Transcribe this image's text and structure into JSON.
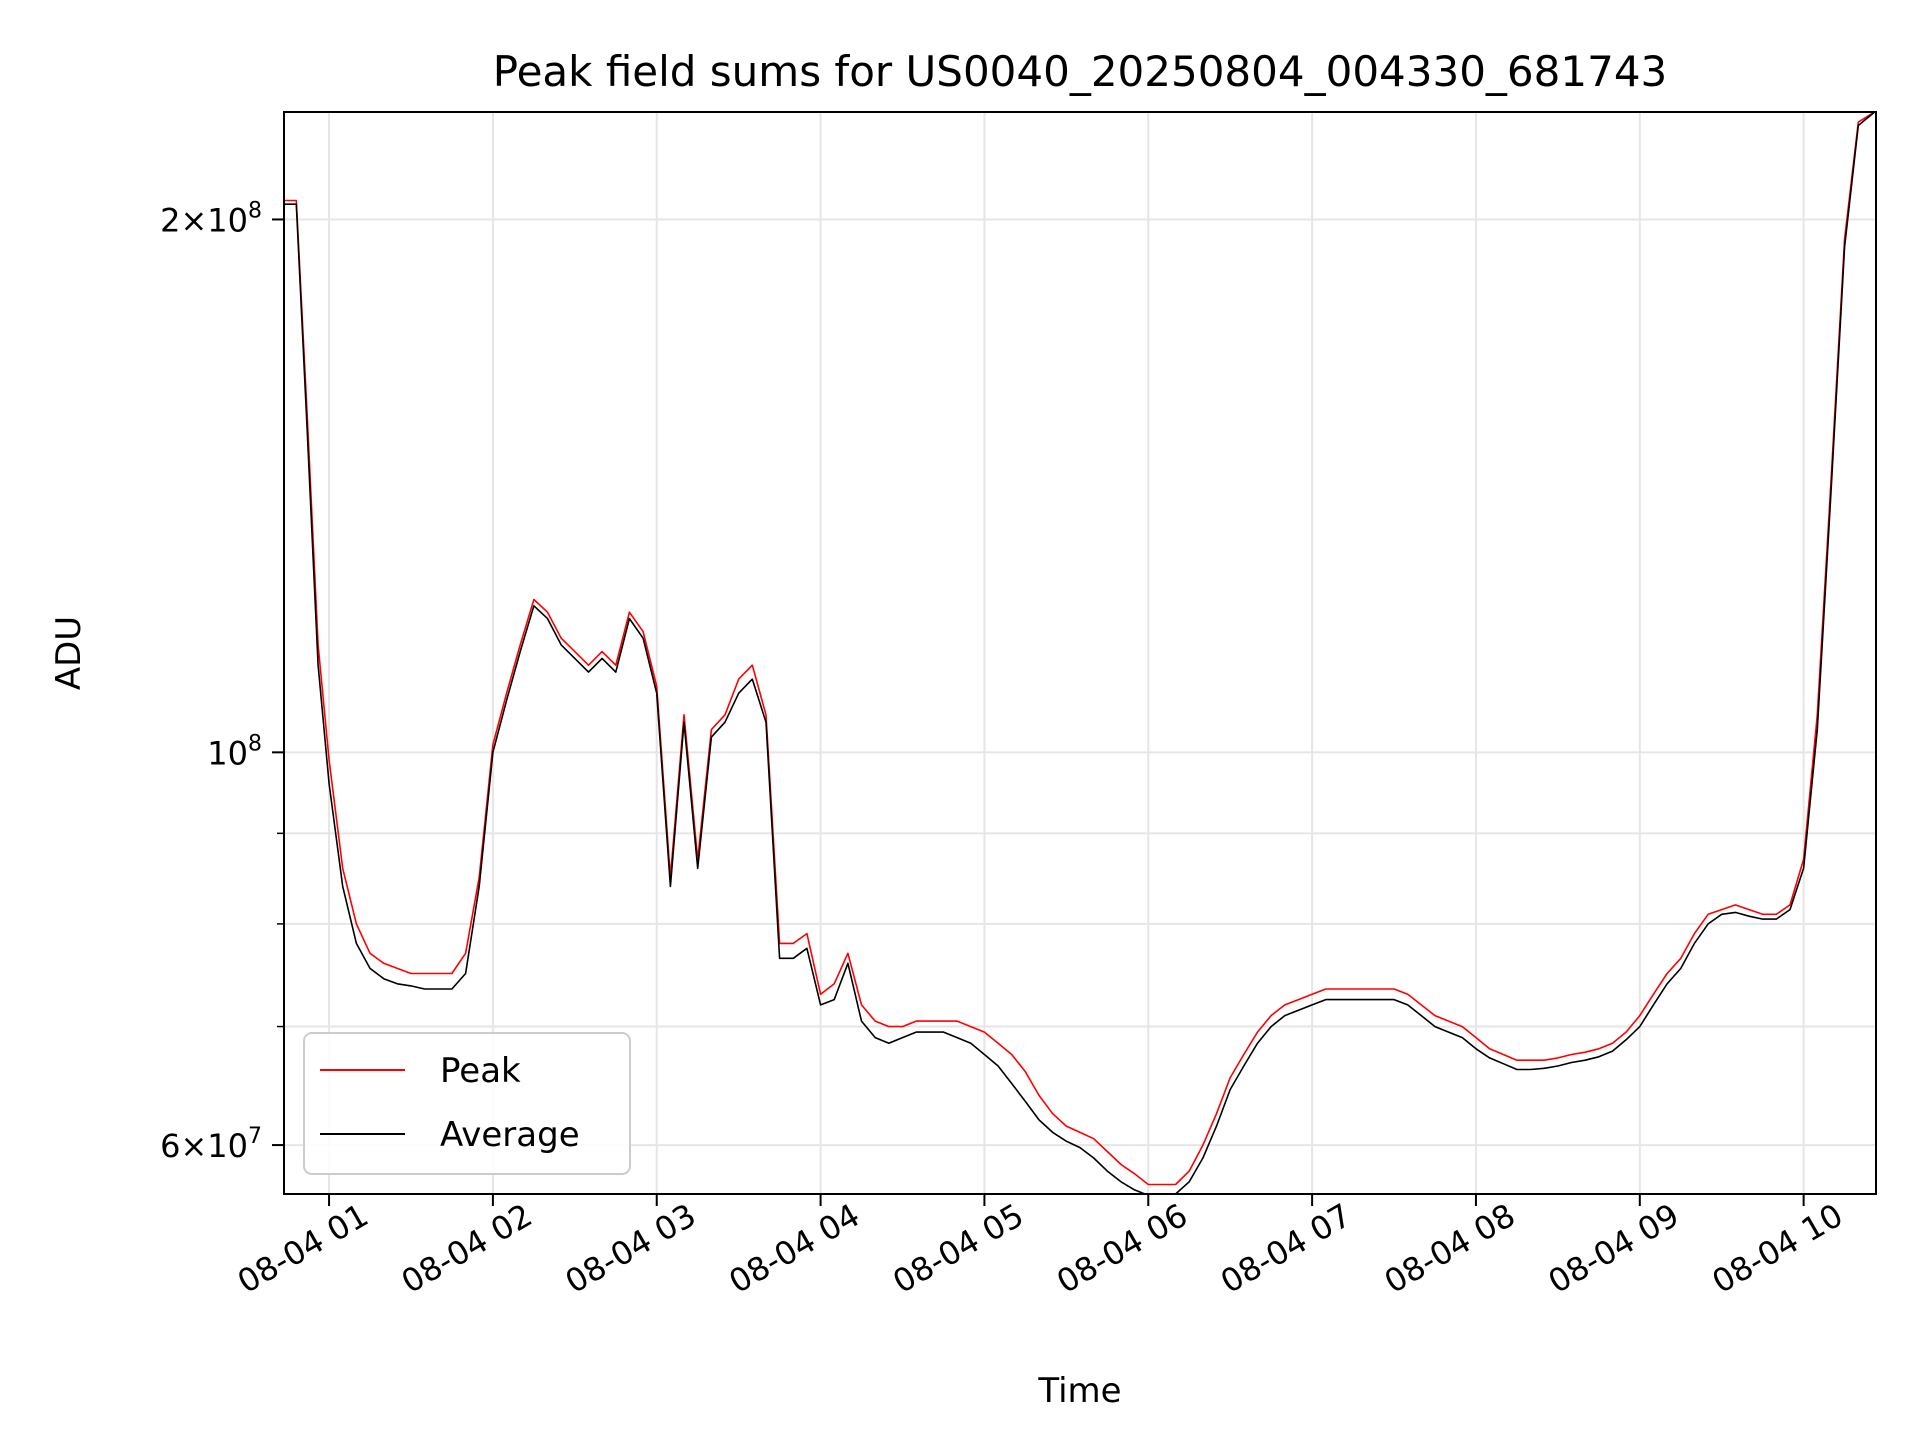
{
  "chart_data": {
    "type": "line",
    "title": "Peak field sums for US0040_20250804_004330_681743",
    "xlabel": "Time",
    "ylabel": "ADU",
    "y_scale": "log",
    "grid": true,
    "legend_position": "lower-left",
    "xlim": [
      "2025-08-04 00:43:30",
      "2025-08-04 10:26:30"
    ],
    "ylim": [
      56300000.0,
      230000000.0
    ],
    "x_ticks": [
      {
        "t": "2025-08-04 01:00",
        "label": "08-04 01"
      },
      {
        "t": "2025-08-04 02:00",
        "label": "08-04 02"
      },
      {
        "t": "2025-08-04 03:00",
        "label": "08-04 03"
      },
      {
        "t": "2025-08-04 04:00",
        "label": "08-04 04"
      },
      {
        "t": "2025-08-04 05:00",
        "label": "08-04 05"
      },
      {
        "t": "2025-08-04 06:00",
        "label": "08-04 06"
      },
      {
        "t": "2025-08-04 07:00",
        "label": "08-04 07"
      },
      {
        "t": "2025-08-04 08:00",
        "label": "08-04 08"
      },
      {
        "t": "2025-08-04 09:00",
        "label": "08-04 09"
      },
      {
        "t": "2025-08-04 10:00",
        "label": "08-04 10"
      }
    ],
    "y_ticks_major": [
      {
        "value": 60000000,
        "base": "6",
        "exp": "7"
      },
      {
        "value": 100000000,
        "base": "",
        "exp": "8"
      },
      {
        "value": 200000000,
        "base": "2",
        "exp": "8"
      }
    ],
    "y_ticks_minor": [
      70000000,
      80000000,
      90000000
    ],
    "series": [
      {
        "name": "Peak",
        "color": "#ff0000",
        "x": [
          "2025-08-04 00:43",
          "2025-08-04 00:48",
          "2025-08-04 00:52",
          "2025-08-04 00:56",
          "2025-08-04 01:00",
          "2025-08-04 01:05",
          "2025-08-04 01:10",
          "2025-08-04 01:15",
          "2025-08-04 01:20",
          "2025-08-04 01:25",
          "2025-08-04 01:30",
          "2025-08-04 01:35",
          "2025-08-04 01:40",
          "2025-08-04 01:45",
          "2025-08-04 01:50",
          "2025-08-04 01:55",
          "2025-08-04 02:00",
          "2025-08-04 02:05",
          "2025-08-04 02:10",
          "2025-08-04 02:15",
          "2025-08-04 02:20",
          "2025-08-04 02:25",
          "2025-08-04 02:30",
          "2025-08-04 02:35",
          "2025-08-04 02:40",
          "2025-08-04 02:45",
          "2025-08-04 02:50",
          "2025-08-04 02:55",
          "2025-08-04 03:00",
          "2025-08-04 03:05",
          "2025-08-04 03:10",
          "2025-08-04 03:15",
          "2025-08-04 03:20",
          "2025-08-04 03:25",
          "2025-08-04 03:30",
          "2025-08-04 03:35",
          "2025-08-04 03:40",
          "2025-08-04 03:45",
          "2025-08-04 03:50",
          "2025-08-04 03:55",
          "2025-08-04 04:00",
          "2025-08-04 04:05",
          "2025-08-04 04:10",
          "2025-08-04 04:15",
          "2025-08-04 04:20",
          "2025-08-04 04:25",
          "2025-08-04 04:30",
          "2025-08-04 04:35",
          "2025-08-04 04:40",
          "2025-08-04 04:45",
          "2025-08-04 04:50",
          "2025-08-04 04:55",
          "2025-08-04 05:00",
          "2025-08-04 05:05",
          "2025-08-04 05:10",
          "2025-08-04 05:15",
          "2025-08-04 05:20",
          "2025-08-04 05:25",
          "2025-08-04 05:30",
          "2025-08-04 05:35",
          "2025-08-04 05:40",
          "2025-08-04 05:45",
          "2025-08-04 05:50",
          "2025-08-04 05:55",
          "2025-08-04 06:00",
          "2025-08-04 06:05",
          "2025-08-04 06:10",
          "2025-08-04 06:15",
          "2025-08-04 06:20",
          "2025-08-04 06:25",
          "2025-08-04 06:30",
          "2025-08-04 06:35",
          "2025-08-04 06:40",
          "2025-08-04 06:45",
          "2025-08-04 06:50",
          "2025-08-04 06:55",
          "2025-08-04 07:00",
          "2025-08-04 07:05",
          "2025-08-04 07:10",
          "2025-08-04 07:15",
          "2025-08-04 07:20",
          "2025-08-04 07:25",
          "2025-08-04 07:30",
          "2025-08-04 07:35",
          "2025-08-04 07:40",
          "2025-08-04 07:45",
          "2025-08-04 07:50",
          "2025-08-04 07:55",
          "2025-08-04 08:00",
          "2025-08-04 08:05",
          "2025-08-04 08:10",
          "2025-08-04 08:15",
          "2025-08-04 08:20",
          "2025-08-04 08:25",
          "2025-08-04 08:30",
          "2025-08-04 08:35",
          "2025-08-04 08:40",
          "2025-08-04 08:45",
          "2025-08-04 08:50",
          "2025-08-04 08:55",
          "2025-08-04 09:00",
          "2025-08-04 09:05",
          "2025-08-04 09:10",
          "2025-08-04 09:15",
          "2025-08-04 09:20",
          "2025-08-04 09:25",
          "2025-08-04 09:30",
          "2025-08-04 09:35",
          "2025-08-04 09:40",
          "2025-08-04 09:45",
          "2025-08-04 09:50",
          "2025-08-04 09:55",
          "2025-08-04 10:00",
          "2025-08-04 10:05",
          "2025-08-04 10:10",
          "2025-08-04 10:15",
          "2025-08-04 10:20",
          "2025-08-04 10:26"
        ],
        "y": [
          205000000.0,
          205000000.0,
          155000000.0,
          115000000.0,
          99000000.0,
          86000000.0,
          80000000.0,
          77000000.0,
          76000000.0,
          75500000.0,
          75000000.0,
          75000000.0,
          75000000.0,
          75000000.0,
          77000000.0,
          85000000.0,
          101000000.0,
          108000000.0,
          115000000.0,
          122000000.0,
          120000000.0,
          116000000.0,
          114000000.0,
          112000000.0,
          114000000.0,
          112000000.0,
          120000000.0,
          117000000.0,
          109000000.0,
          85000000.0,
          105000000.0,
          87000000.0,
          103000000.0,
          105000000.0,
          110000000.0,
          112000000.0,
          105000000.0,
          78000000.0,
          78000000.0,
          79000000.0,
          73000000.0,
          74000000.0,
          77000000.0,
          72000000.0,
          70500000.0,
          70000000.0,
          70000000.0,
          70500000.0,
          70500000.0,
          70500000.0,
          70500000.0,
          70000000.0,
          69500000.0,
          68500000.0,
          67500000.0,
          66000000.0,
          64000000.0,
          62500000.0,
          61500000.0,
          61000000.0,
          60500000.0,
          59500000.0,
          58500000.0,
          57800000.0,
          57000000.0,
          57000000.0,
          57000000.0,
          58000000.0,
          60000000.0,
          62500000.0,
          65500000.0,
          67500000.0,
          69500000.0,
          71000000.0,
          72000000.0,
          72500000.0,
          73000000.0,
          73500000.0,
          73500000.0,
          73500000.0,
          73500000.0,
          73500000.0,
          73500000.0,
          73000000.0,
          72000000.0,
          71000000.0,
          70500000.0,
          70000000.0,
          69000000.0,
          68000000.0,
          67500000.0,
          67000000.0,
          67000000.0,
          67000000.0,
          67200000.0,
          67500000.0,
          67700000.0,
          68000000.0,
          68500000.0,
          69500000.0,
          71000000.0,
          73000000.0,
          75000000.0,
          76500000.0,
          79000000.0,
          81000000.0,
          81500000.0,
          82000000.0,
          81500000.0,
          81000000.0,
          81000000.0,
          82000000.0,
          87000000.0,
          105000000.0,
          142000000.0,
          195000000.0,
          227000000.0,
          230000000.0
        ]
      },
      {
        "name": "Average",
        "color": "#000000",
        "x": [
          "2025-08-04 00:43",
          "2025-08-04 00:48",
          "2025-08-04 00:52",
          "2025-08-04 00:56",
          "2025-08-04 01:00",
          "2025-08-04 01:05",
          "2025-08-04 01:10",
          "2025-08-04 01:15",
          "2025-08-04 01:20",
          "2025-08-04 01:25",
          "2025-08-04 01:30",
          "2025-08-04 01:35",
          "2025-08-04 01:40",
          "2025-08-04 01:45",
          "2025-08-04 01:50",
          "2025-08-04 01:55",
          "2025-08-04 02:00",
          "2025-08-04 02:05",
          "2025-08-04 02:10",
          "2025-08-04 02:15",
          "2025-08-04 02:20",
          "2025-08-04 02:25",
          "2025-08-04 02:30",
          "2025-08-04 02:35",
          "2025-08-04 02:40",
          "2025-08-04 02:45",
          "2025-08-04 02:50",
          "2025-08-04 02:55",
          "2025-08-04 03:00",
          "2025-08-04 03:05",
          "2025-08-04 03:10",
          "2025-08-04 03:15",
          "2025-08-04 03:20",
          "2025-08-04 03:25",
          "2025-08-04 03:30",
          "2025-08-04 03:35",
          "2025-08-04 03:40",
          "2025-08-04 03:45",
          "2025-08-04 03:50",
          "2025-08-04 03:55",
          "2025-08-04 04:00",
          "2025-08-04 04:05",
          "2025-08-04 04:10",
          "2025-08-04 04:15",
          "2025-08-04 04:20",
          "2025-08-04 04:25",
          "2025-08-04 04:30",
          "2025-08-04 04:35",
          "2025-08-04 04:40",
          "2025-08-04 04:45",
          "2025-08-04 04:50",
          "2025-08-04 04:55",
          "2025-08-04 05:00",
          "2025-08-04 05:05",
          "2025-08-04 05:10",
          "2025-08-04 05:15",
          "2025-08-04 05:20",
          "2025-08-04 05:25",
          "2025-08-04 05:30",
          "2025-08-04 05:35",
          "2025-08-04 05:40",
          "2025-08-04 05:45",
          "2025-08-04 05:50",
          "2025-08-04 05:55",
          "2025-08-04 06:00",
          "2025-08-04 06:05",
          "2025-08-04 06:10",
          "2025-08-04 06:15",
          "2025-08-04 06:20",
          "2025-08-04 06:25",
          "2025-08-04 06:30",
          "2025-08-04 06:35",
          "2025-08-04 06:40",
          "2025-08-04 06:45",
          "2025-08-04 06:50",
          "2025-08-04 06:55",
          "2025-08-04 07:00",
          "2025-08-04 07:05",
          "2025-08-04 07:10",
          "2025-08-04 07:15",
          "2025-08-04 07:20",
          "2025-08-04 07:25",
          "2025-08-04 07:30",
          "2025-08-04 07:35",
          "2025-08-04 07:40",
          "2025-08-04 07:45",
          "2025-08-04 07:50",
          "2025-08-04 07:55",
          "2025-08-04 08:00",
          "2025-08-04 08:05",
          "2025-08-04 08:10",
          "2025-08-04 08:15",
          "2025-08-04 08:20",
          "2025-08-04 08:25",
          "2025-08-04 08:30",
          "2025-08-04 08:35",
          "2025-08-04 08:40",
          "2025-08-04 08:45",
          "2025-08-04 08:50",
          "2025-08-04 08:55",
          "2025-08-04 09:00",
          "2025-08-04 09:05",
          "2025-08-04 09:10",
          "2025-08-04 09:15",
          "2025-08-04 09:20",
          "2025-08-04 09:25",
          "2025-08-04 09:30",
          "2025-08-04 09:35",
          "2025-08-04 09:40",
          "2025-08-04 09:45",
          "2025-08-04 09:50",
          "2025-08-04 09:55",
          "2025-08-04 10:00",
          "2025-08-04 10:05",
          "2025-08-04 10:10",
          "2025-08-04 10:15",
          "2025-08-04 10:20",
          "2025-08-04 10:26"
        ],
        "y": [
          204000000.0,
          204000000.0,
          152000000.0,
          112000000.0,
          96000000.0,
          84000000.0,
          78000000.0,
          75500000.0,
          74500000.0,
          74000000.0,
          73800000.0,
          73500000.0,
          73500000.0,
          73500000.0,
          75000000.0,
          84000000.0,
          100000000.0,
          107000000.0,
          114000000.0,
          121000000.0,
          119000000.0,
          115000000.0,
          113000000.0,
          111000000.0,
          113000000.0,
          111000000.0,
          119000000.0,
          116000000.0,
          108000000.0,
          84000000.0,
          104000000.0,
          86000000.0,
          102000000.0,
          104000000.0,
          108000000.0,
          110000000.0,
          104000000.0,
          76500000.0,
          76500000.0,
          77500000.0,
          72000000.0,
          72500000.0,
          76000000.0,
          70500000.0,
          69000000.0,
          68500000.0,
          69000000.0,
          69500000.0,
          69500000.0,
          69500000.0,
          69000000.0,
          68500000.0,
          67500000.0,
          66500000.0,
          65000000.0,
          63500000.0,
          62000000.0,
          61000000.0,
          60300000.0,
          59800000.0,
          59000000.0,
          58000000.0,
          57200000.0,
          56600000.0,
          56200000.0,
          56200000.0,
          56300000.0,
          57200000.0,
          59000000.0,
          61500000.0,
          64500000.0,
          66500000.0,
          68500000.0,
          70000000.0,
          71000000.0,
          71500000.0,
          72000000.0,
          72500000.0,
          72500000.0,
          72500000.0,
          72500000.0,
          72500000.0,
          72500000.0,
          72000000.0,
          71000000.0,
          70000000.0,
          69500000.0,
          69000000.0,
          68000000.0,
          67200000.0,
          66700000.0,
          66200000.0,
          66200000.0,
          66300000.0,
          66500000.0,
          66800000.0,
          67000000.0,
          67300000.0,
          67800000.0,
          68800000.0,
          70000000.0,
          72000000.0,
          74000000.0,
          75500000.0,
          78000000.0,
          80000000.0,
          81000000.0,
          81200000.0,
          80800000.0,
          80500000.0,
          80500000.0,
          81500000.0,
          86000000.0,
          103000000.0,
          140000000.0,
          193000000.0,
          226000000.0,
          230000000.0
        ]
      }
    ]
  }
}
